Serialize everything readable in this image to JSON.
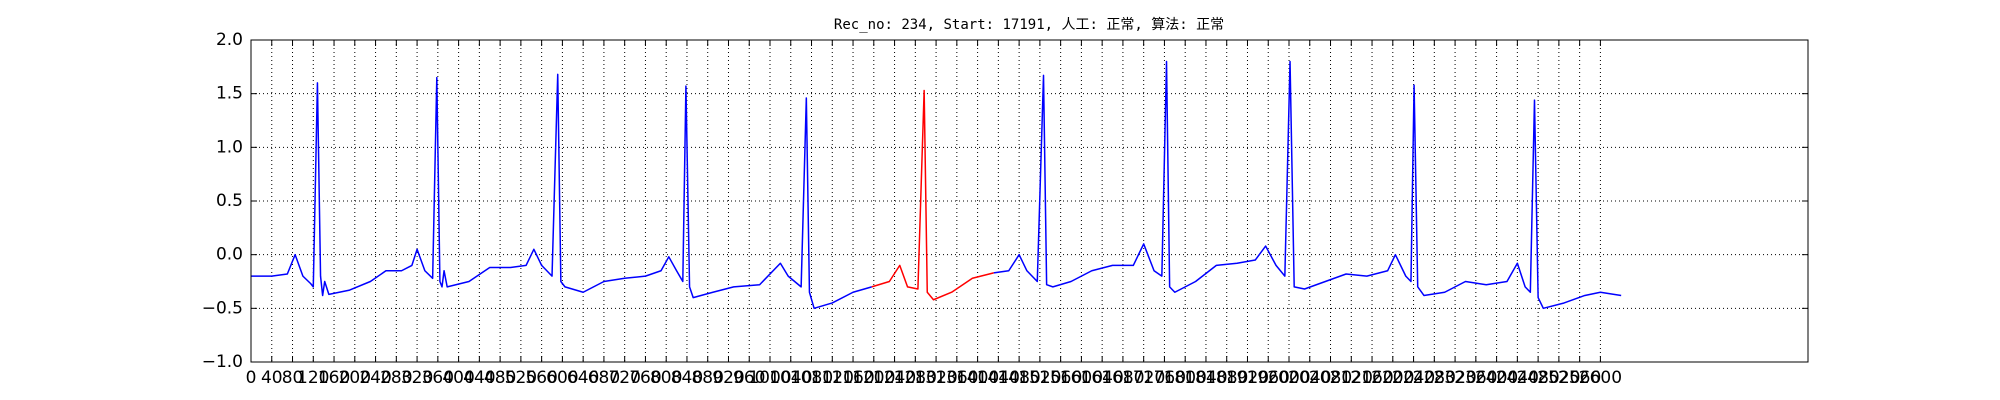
{
  "chart_data": {
    "type": "line",
    "title": "Rec_no: 234, Start: 17191, 人工: 正常, 算法: 正常",
    "series": [
      {
        "color": "#0000ff",
        "x": [
          0,
          40,
          70,
          85,
          100,
          115,
          120,
          128,
          134,
          138,
          142,
          150,
          190,
          230,
          260,
          290,
          310,
          320,
          335,
          350,
          358,
          364,
          368,
          372,
          378,
          420,
          460,
          500,
          530,
          545,
          560,
          580,
          591,
          597,
          605,
          640,
          680,
          720,
          760,
          790,
          805,
          820,
          832,
          838,
          845,
          852,
          890,
          930,
          980,
          1020,
          1035,
          1060,
          1070,
          1076,
          1085,
          1120,
          1160,
          1196,
          1230,
          1250,
          1265,
          1285,
          1297,
          1303,
          1315,
          1350,
          1390,
          1431,
          1460,
          1480,
          1495,
          1515,
          1527,
          1533,
          1545,
          1580,
          1620,
          1660,
          1700,
          1720,
          1740,
          1755,
          1764,
          1770,
          1780,
          1820,
          1860,
          1900,
          1935,
          1955,
          1975,
          1992,
          2002,
          2010,
          2030,
          2070,
          2110,
          2150,
          2190,
          2205,
          2225,
          2235,
          2241,
          2248,
          2260,
          2300,
          2340,
          2380,
          2420,
          2440,
          2455,
          2465,
          2473,
          2480,
          2490,
          2530,
          2570,
          2600,
          2640
        ],
        "values": [
          -0.2,
          -0.2,
          -0.18,
          0.0,
          -0.2,
          -0.27,
          -0.3,
          1.6,
          -0.2,
          -0.38,
          -0.25,
          -0.37,
          -0.33,
          -0.25,
          -0.15,
          -0.15,
          -0.1,
          0.05,
          -0.15,
          -0.22,
          1.65,
          -0.25,
          -0.3,
          -0.15,
          -0.3,
          -0.25,
          -0.12,
          -0.12,
          -0.1,
          0.05,
          -0.1,
          -0.2,
          1.68,
          -0.25,
          -0.3,
          -0.35,
          -0.25,
          -0.22,
          -0.2,
          -0.15,
          -0.02,
          -0.15,
          -0.25,
          1.57,
          -0.3,
          -0.4,
          -0.35,
          -0.3,
          -0.28,
          -0.08,
          -0.2,
          -0.3,
          1.46,
          -0.35,
          -0.5,
          -0.45,
          -0.35,
          -0.3,
          null,
          null,
          null,
          null,
          null,
          null,
          null,
          null,
          null,
          -0.17,
          -0.15,
          0.0,
          -0.15,
          -0.25,
          1.67,
          -0.28,
          -0.3,
          -0.25,
          -0.15,
          -0.1,
          -0.1,
          0.1,
          -0.15,
          -0.2,
          1.8,
          -0.3,
          -0.35,
          -0.25,
          -0.1,
          -0.08,
          -0.05,
          0.08,
          -0.1,
          -0.2,
          1.8,
          -0.3,
          -0.32,
          -0.25,
          -0.18,
          -0.2,
          -0.15,
          0.0,
          -0.2,
          -0.25,
          1.58,
          -0.3,
          -0.38,
          -0.35,
          -0.25,
          -0.28,
          -0.25,
          -0.08,
          -0.3,
          -0.35,
          1.44,
          -0.4,
          -0.5,
          -0.45,
          -0.38,
          -0.35,
          -0.38
        ]
      },
      {
        "color": "#ff0000",
        "x": [
          1196,
          1230,
          1250,
          1265,
          1285,
          1297,
          1303,
          1315,
          1350,
          1390,
          1431
        ],
        "values": [
          -0.3,
          -0.25,
          -0.1,
          -0.3,
          -0.32,
          1.53,
          -0.35,
          -0.42,
          -0.35,
          -0.22,
          -0.17
        ]
      }
    ],
    "xlim": [
      0,
      3000
    ],
    "xticks": [
      0,
      40,
      80,
      120,
      160,
      200,
      240,
      280,
      320,
      360,
      400,
      440,
      480,
      520,
      560,
      600,
      640,
      680,
      720,
      760,
      800,
      840,
      880,
      920,
      960,
      1000,
      1040,
      1080,
      1120,
      1160,
      1200,
      1240,
      1280,
      1320,
      1360,
      1400,
      1440,
      1480,
      1520,
      1560,
      1600,
      1640,
      1680,
      1720,
      1760,
      1800,
      1840,
      1880,
      1920,
      1960,
      2000,
      2040,
      2080,
      2120,
      2160,
      2200,
      2240,
      2280,
      2320,
      2360,
      2400,
      2440,
      2480,
      2520,
      2560,
      2600
    ],
    "ylim": [
      -1,
      2
    ],
    "yticks": [
      {
        "value": -1,
        "label": "−1.0"
      },
      {
        "value": -0.5,
        "label": "−0.5"
      },
      {
        "value": 0,
        "label": "0.0"
      },
      0.5,
      {
        "value": 1,
        "label": "1.0"
      },
      1.5,
      {
        "value": 2,
        "label": "2.0"
      }
    ],
    "grid": true
  }
}
